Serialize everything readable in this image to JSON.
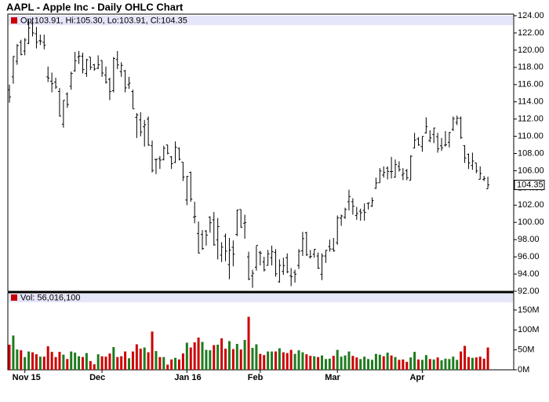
{
  "chart_data": [
    {
      "type": "ohlc",
      "title": "AAPL - Apple Inc - Daily OHLC Chart",
      "legend": "Op:103.91, Hi:105.30, Lo:103.91, Cl:104.35",
      "color": "#000000",
      "legend_color": "#cc0000",
      "ylim": [
        92,
        124
      ],
      "yticks": [
        {
          "value": 92,
          "label": "92.00"
        },
        {
          "value": 94,
          "label": "94.00"
        },
        {
          "value": 96,
          "label": "96.00"
        },
        {
          "value": 98,
          "label": "98.00"
        },
        {
          "value": 100,
          "label": "100.00"
        },
        {
          "value": 102,
          "label": "102.00"
        },
        {
          "value": 104,
          "label": "104.00"
        },
        {
          "value": 106,
          "label": "106.00"
        },
        {
          "value": 108,
          "label": "108.00"
        },
        {
          "value": 110,
          "label": "110.00"
        },
        {
          "value": 112,
          "label": "112.00"
        },
        {
          "value": 114,
          "label": "114.00"
        },
        {
          "value": 116,
          "label": "116.00"
        },
        {
          "value": 118,
          "label": "118.00"
        },
        {
          "value": 120,
          "label": "120.00"
        },
        {
          "value": 122,
          "label": "122.00"
        },
        {
          "value": 124,
          "label": "124.00"
        }
      ],
      "open": [
        115.4,
        116.9,
        118.7,
        120.9,
        119.9,
        120.8,
        123.1,
        121.9,
        121.1,
        120.9,
        116.9,
        116.4,
        116.3,
        115.2,
        111.4,
        114.9,
        115.8,
        117.6,
        119.2,
        119.3,
        117.3,
        119.2,
        118.3,
        117.9,
        118.8,
        117.1,
        116.6,
        115.3,
        118.9,
        117.5,
        117.6,
        116.0,
        115.2,
        112.2,
        111.9,
        111.1,
        112.0,
        108.9,
        107.3,
        107.4,
        107.3,
        109.0,
        107.6,
        106.96,
        108.6,
        107.0,
        102.6,
        105.8,
        100.6,
        98.7,
        98.6,
        99.0,
        100.6,
        100.3,
        97.96,
        96.2,
        98.4,
        95.1,
        97.1,
        98.6,
        101.5,
        99.9,
        96.0,
        93.8,
        94.8,
        96.5,
        95.4,
        95.0,
        95.9,
        96.5,
        93.1,
        94.3,
        95.9,
        93.8,
        94.2,
        95.0,
        96.7,
        98.8,
        96.0,
        96.3,
        96.1,
        93.98,
        96.1,
        97.2,
        96.9,
        97.65,
        100.5,
        100.6,
        102.4,
        102.4,
        100.8,
        101.3,
        101.4,
        102.2,
        101.9,
        103.96,
        104.6,
        105.5,
        106.3,
        105.9,
        105.25,
        106.5,
        105.5,
        106.0,
        104.9,
        108.65,
        109.7,
        108.8,
        110.4,
        109.5,
        110.2,
        109.95,
        108.9,
        108.97,
        109.3,
        110.8,
        111.6,
        112.1,
        108.9,
        107.9,
        106.6,
        106.9,
        105.0,
        105.0,
        103.91
      ],
      "high": [
        116.0,
        119.3,
        120.7,
        121.2,
        121.4,
        123.5,
        123.8,
        122.7,
        121.8,
        121.8,
        118.1,
        117.4,
        116.8,
        115.6,
        114.2,
        115.1,
        117.5,
        119.8,
        119.9,
        119.7,
        119.0,
        119.2,
        118.4,
        119.4,
        118.8,
        118.1,
        116.8,
        119.2,
        119.9,
        118.6,
        117.7,
        116.9,
        115.4,
        112.7,
        112.8,
        111.9,
        112.3,
        109.5,
        107.4,
        107.7,
        108.9,
        109.0,
        107.7,
        109.4,
        108.7,
        107.0,
        105.4,
        105.9,
        102.4,
        100.1,
        99.1,
        99.1,
        100.7,
        101.2,
        100.5,
        97.7,
        98.7,
        98.2,
        97.9,
        101.5,
        101.5,
        100.9,
        96.6,
        94.5,
        97.3,
        96.7,
        96.0,
        96.8,
        97.3,
        96.9,
        95.7,
        95.9,
        96.4,
        94.7,
        94.5,
        96.9,
        98.9,
        98.9,
        96.8,
        96.9,
        96.5,
        96.4,
        96.8,
        98.0,
        98.2,
        100.8,
        100.9,
        101.7,
        103.8,
        102.8,
        101.8,
        101.6,
        102.2,
        102.3,
        102.9,
        105.2,
        106.3,
        106.5,
        106.5,
        107.6,
        107.3,
        107.1,
        106.3,
        106.2,
        107.8,
        110.4,
        109.9,
        110.0,
        112.2,
        110.7,
        110.98,
        110.4,
        109.8,
        110.6,
        110.5,
        112.3,
        112.4,
        112.3,
        108.95,
        108.0,
        108.1,
        106.9,
        106.5,
        105.4,
        105.3
      ],
      "low": [
        113.9,
        116.1,
        118.3,
        119.4,
        119.4,
        120.7,
        121.6,
        120.2,
        120.6,
        120.1,
        116.3,
        115.1,
        115.5,
        112.3,
        111.0,
        113.3,
        115.4,
        117.5,
        118.4,
        117.3,
        116.9,
        117.7,
        117.6,
        117.8,
        116.9,
        116.1,
        114.2,
        115.1,
        117.8,
        116.9,
        115.1,
        115.5,
        113.2,
        109.8,
        110.0,
        108.8,
        108.9,
        105.8,
        105.6,
        106.2,
        107.2,
        107.9,
        106.2,
        106.9,
        107.2,
        104.8,
        102.0,
        102.4,
        99.9,
        96.4,
        96.8,
        97.3,
        98.8,
        97.3,
        95.7,
        95.4,
        95.5,
        93.4,
        94.9,
        98.4,
        99.4,
        98.1,
        93.3,
        92.4,
        94.4,
        95.0,
        94.3,
        95.0,
        95.0,
        93.7,
        93.0,
        93.9,
        94.1,
        92.6,
        93.0,
        94.6,
        96.1,
        96.1,
        95.8,
        95.9,
        94.6,
        93.3,
        95.3,
        96.6,
        96.6,
        97.4,
        99.6,
        100.4,
        101.4,
        100.9,
        100.3,
        100.2,
        100.2,
        101.5,
        101.8,
        103.9,
        104.6,
        105.2,
        105.0,
        105.1,
        105.2,
        105.9,
        104.9,
        104.9,
        104.9,
        108.6,
        108.9,
        108.2,
        110.3,
        109.3,
        109.2,
        108.1,
        108.3,
        108.8,
        108.7,
        110.6,
        111.3,
        109.7,
        106.9,
        106.2,
        106.1,
        105.7,
        105.0,
        104.8,
        103.91
      ],
      "close": [
        114.55,
        119.27,
        120.53,
        119.5,
        121.18,
        122.57,
        122.0,
        120.92,
        121.06,
        120.57,
        116.77,
        116.11,
        115.72,
        112.34,
        114.18,
        113.69,
        117.29,
        118.78,
        119.3,
        117.75,
        118.88,
        118.03,
        117.81,
        118.3,
        117.34,
        116.28,
        115.2,
        119.03,
        118.28,
        118.23,
        115.62,
        116.17,
        113.18,
        112.48,
        110.49,
        111.34,
        108.98,
        106.03,
        107.33,
        107.23,
        108.61,
        108.03,
        106.82,
        108.74,
        107.32,
        105.26,
        105.35,
        102.71,
        100.7,
        96.45,
        96.96,
        98.53,
        99.96,
        97.39,
        99.52,
        97.13,
        96.66,
        96.79,
        96.3,
        101.42,
        99.44,
        99.99,
        93.42,
        94.09,
        97.34,
        96.43,
        94.48,
        96.35,
        96.6,
        94.02,
        95.01,
        94.99,
        94.27,
        93.7,
        93.99,
        96.64,
        98.12,
        96.26,
        96.04,
        96.88,
        94.69,
        96.1,
        96.76,
        96.91,
        96.69,
        100.53,
        100.75,
        101.5,
        103.01,
        101.87,
        101.03,
        101.12,
        101.17,
        102.26,
        102.52,
        104.58,
        105.97,
        105.8,
        105.92,
        105.91,
        106.72,
        106.13,
        105.67,
        105.19,
        107.68,
        109.56,
        108.99,
        109.99,
        111.12,
        109.81,
        110.96,
        108.54,
        108.66,
        109.02,
        110.44,
        112.04,
        112.1,
        109.85,
        107.48,
        106.91,
        107.13,
        105.97,
        105.68,
        105.08,
        104.35
      ]
    },
    {
      "type": "bar",
      "legend": "Vol: 56,016,100",
      "up_color": "#1e7b1e",
      "down_color": "#cc0000",
      "legend_color": "#cc0000",
      "ylim": [
        0,
        195
      ],
      "yticks": [
        {
          "value": 0,
          "label": "0M"
        },
        {
          "value": 50,
          "label": "50M"
        },
        {
          "value": 100,
          "label": "100M"
        },
        {
          "value": 150,
          "label": "150M"
        }
      ],
      "categories": [
        null,
        null,
        null,
        null,
        "Nov 15",
        null,
        null,
        null,
        null,
        null,
        null,
        null,
        null,
        null,
        null,
        null,
        null,
        null,
        null,
        null,
        null,
        null,
        null,
        null,
        "Dec",
        null,
        null,
        null,
        null,
        null,
        null,
        null,
        null,
        null,
        null,
        null,
        null,
        null,
        null,
        null,
        null,
        null,
        null,
        null,
        null,
        null,
        "Jan 16",
        null,
        null,
        null,
        null,
        null,
        null,
        null,
        null,
        null,
        null,
        null,
        null,
        null,
        null,
        null,
        null,
        null,
        null,
        "Feb",
        null,
        null,
        null,
        null,
        null,
        null,
        null,
        null,
        null,
        null,
        null,
        null,
        null,
        null,
        null,
        null,
        null,
        null,
        null,
        "Mar",
        null,
        null,
        null,
        null,
        null,
        null,
        null,
        null,
        null,
        null,
        null,
        null,
        null,
        null,
        null,
        null,
        null,
        null,
        null,
        null,
        null,
        "Apr",
        null,
        null,
        null,
        null,
        null,
        null,
        null,
        null,
        null,
        null,
        null,
        null,
        null,
        null,
        null,
        null,
        null
      ],
      "values": [
        63,
        86,
        51,
        49,
        32,
        46,
        44,
        39,
        33,
        33,
        59,
        45,
        32,
        45,
        38,
        27,
        46,
        43,
        34,
        32,
        42,
        22,
        14,
        39,
        34,
        33,
        41,
        57,
        32,
        34,
        46,
        29,
        46,
        64,
        53,
        56,
        44,
        96,
        47,
        32,
        32,
        13,
        26,
        30,
        26,
        41,
        68,
        56,
        69,
        81,
        70,
        50,
        49,
        62,
        63,
        79,
        53,
        72,
        52,
        65,
        51,
        75,
        133,
        55,
        64,
        40,
        37,
        46,
        46,
        46,
        54,
        44,
        42,
        50,
        40,
        49,
        44,
        39,
        35,
        34,
        32,
        36,
        27,
        28,
        35,
        50,
        33,
        36,
        46,
        35,
        31,
        27,
        33,
        27,
        25,
        40,
        38,
        34,
        43,
        36,
        32,
        25,
        26,
        20,
        31,
        45,
        26,
        25,
        37,
        27,
        26,
        31,
        24,
        28,
        27,
        33,
        25,
        46,
        60,
        32,
        30,
        31,
        33,
        28,
        56.0161
      ]
    }
  ]
}
